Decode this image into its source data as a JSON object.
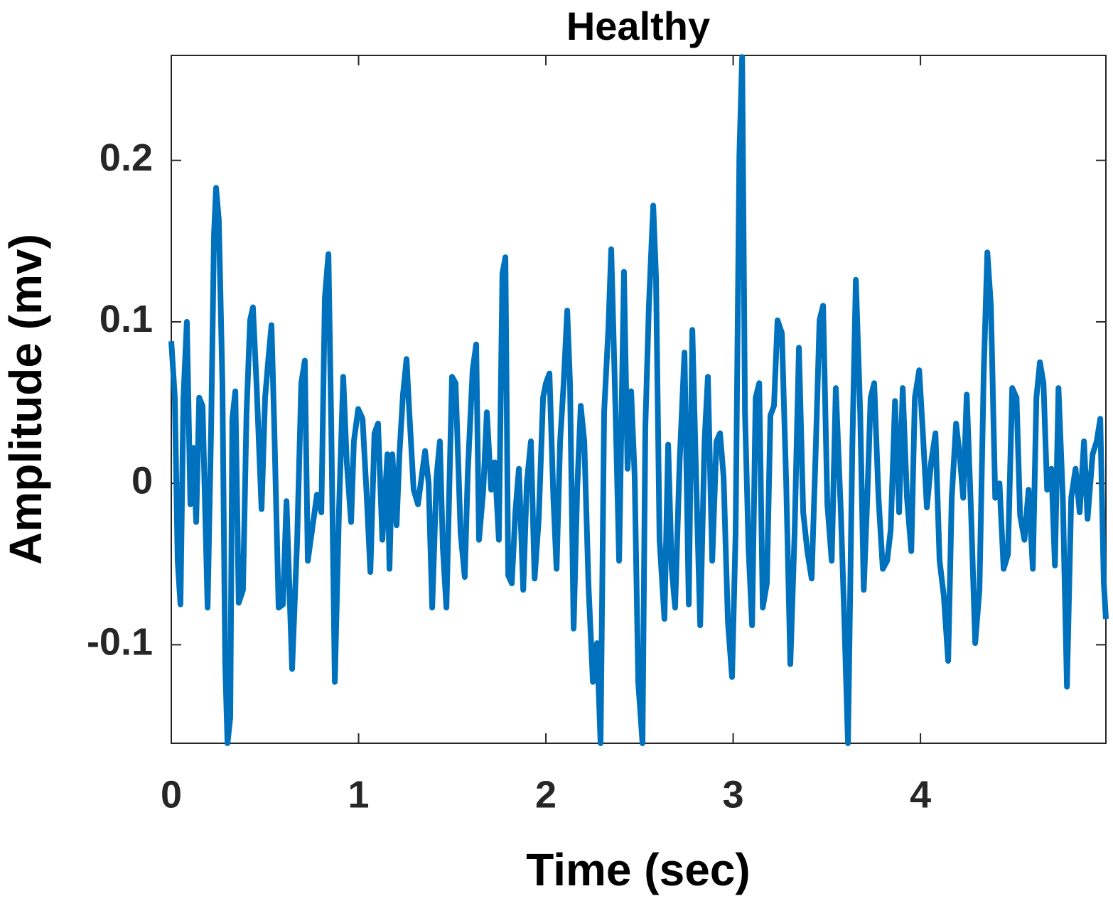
{
  "chart_data": {
    "type": "line",
    "title": "Healthy",
    "x_label": "Time (sec)",
    "y_label": "Amplitude (mv)",
    "xlim": [
      0,
      4.99
    ],
    "ylim": [
      -0.161,
      0.265
    ],
    "xticks": [
      0,
      1,
      2,
      3,
      4
    ],
    "yticks": [
      -0.1,
      0,
      0.1,
      0.2
    ],
    "grid": false,
    "x": [
      0,
      0.019,
      0.034,
      0.049,
      0.065,
      0.083,
      0.102,
      0.118,
      0.133,
      0.149,
      0.167,
      0.194,
      0.213,
      0.228,
      0.239,
      0.254,
      0.273,
      0.288,
      0.3,
      0.315,
      0.326,
      0.342,
      0.36,
      0.383,
      0.402,
      0.421,
      0.436,
      0.455,
      0.482,
      0.501,
      0.52,
      0.535,
      0.55,
      0.573,
      0.596,
      0.615,
      0.645,
      0.672,
      0.694,
      0.713,
      0.729,
      0.755,
      0.778,
      0.801,
      0.82,
      0.839,
      0.854,
      0.873,
      0.896,
      0.918,
      0.937,
      0.96,
      0.975,
      0.998,
      1.021,
      1.044,
      1.063,
      1.085,
      1.104,
      1.127,
      1.154,
      1.165,
      1.18,
      1.203,
      1.218,
      1.237,
      1.256,
      1.271,
      1.294,
      1.317,
      1.332,
      1.355,
      1.374,
      1.393,
      1.416,
      1.434,
      1.45,
      1.469,
      1.499,
      1.518,
      1.545,
      1.567,
      1.583,
      1.609,
      1.628,
      1.643,
      1.666,
      1.685,
      1.708,
      1.727,
      1.749,
      1.768,
      1.784,
      1.799,
      1.818,
      1.837,
      1.856,
      1.879,
      1.898,
      1.92,
      1.94,
      1.962,
      1.985,
      2.0,
      2.019,
      2.04,
      2.057,
      2.076,
      2.095,
      2.114,
      2.129,
      2.148,
      2.167,
      2.186,
      2.205,
      2.228,
      2.251,
      2.273,
      2.292,
      2.311,
      2.334,
      2.349,
      2.372,
      2.391,
      2.417,
      2.436,
      2.455,
      2.474,
      2.493,
      2.516,
      2.531,
      2.55,
      2.573,
      2.588,
      2.607,
      2.633,
      2.653,
      2.672,
      2.69,
      2.714,
      2.74,
      2.763,
      2.782,
      2.805,
      2.824,
      2.847,
      2.865,
      2.888,
      2.911,
      2.93,
      2.949,
      2.972,
      2.994,
      3.013,
      3.033,
      3.048,
      3.063,
      3.082,
      3.101,
      3.12,
      3.139,
      3.158,
      3.18,
      3.199,
      3.218,
      3.237,
      3.26,
      3.283,
      3.305,
      3.328,
      3.351,
      3.374,
      3.396,
      3.419,
      3.442,
      3.461,
      3.48,
      3.503,
      3.526,
      3.548,
      3.575,
      3.594,
      3.613,
      3.636,
      3.655,
      3.678,
      3.697,
      3.716,
      3.734,
      3.753,
      3.776,
      3.799,
      3.822,
      3.841,
      3.864,
      3.886,
      3.905,
      3.928,
      3.951,
      3.97,
      3.993,
      4.011,
      4.034,
      4.057,
      4.08,
      4.102,
      4.125,
      4.148,
      4.167,
      4.19,
      4.209,
      4.228,
      4.247,
      4.27,
      4.292,
      4.315,
      4.338,
      4.357,
      4.376,
      4.399,
      4.422,
      4.444,
      4.467,
      4.49,
      4.513,
      4.532,
      4.555,
      4.577,
      4.6,
      4.619,
      4.638,
      4.657,
      4.676,
      4.699,
      4.718,
      4.737,
      4.76,
      4.782,
      4.805,
      4.828,
      4.85,
      4.873,
      4.892,
      4.919,
      4.941,
      4.96,
      4.979,
      4.99
    ],
    "series": [
      {
        "color": "#0072bd",
        "values": [
          0.088,
          0.053,
          -0.048,
          -0.075,
          0.053,
          0.1,
          -0.013,
          0.022,
          -0.024,
          0.053,
          0.048,
          -0.077,
          0.035,
          0.154,
          0.183,
          0.163,
          0.062,
          -0.112,
          -0.161,
          -0.145,
          0.04,
          0.057,
          -0.074,
          -0.066,
          0.044,
          0.101,
          0.109,
          0.062,
          -0.016,
          0.053,
          0.079,
          0.098,
          0.035,
          -0.077,
          -0.075,
          -0.011,
          -0.115,
          -0.035,
          0.062,
          0.076,
          -0.048,
          -0.026,
          -0.007,
          -0.018,
          0.115,
          0.142,
          0.035,
          -0.123,
          -0.015,
          0.066,
          0.013,
          -0.024,
          0.026,
          0.046,
          0.04,
          -0.009,
          -0.055,
          0.031,
          0.037,
          -0.035,
          0.018,
          -0.053,
          0.018,
          -0.026,
          0.018,
          0.055,
          0.077,
          0.044,
          -0.004,
          -0.013,
          0,
          0.02,
          0,
          -0.077,
          0.004,
          0.026,
          -0.04,
          -0.077,
          0.066,
          0.062,
          -0.031,
          -0.058,
          0.007,
          0.07,
          0.086,
          -0.035,
          -0.004,
          0.044,
          -0.004,
          0.013,
          -0.035,
          0.13,
          0.14,
          -0.057,
          -0.062,
          -0.018,
          0.009,
          -0.066,
          0,
          0.026,
          -0.059,
          -0.022,
          0.053,
          0.062,
          0.068,
          -0.009,
          -0.053,
          0.026,
          0.062,
          0.107,
          0.062,
          -0.09,
          -0.004,
          0.048,
          0.026,
          -0.064,
          -0.123,
          -0.099,
          -0.161,
          0.044,
          0.097,
          0.145,
          0.044,
          -0.048,
          0.131,
          0.009,
          0.057,
          0.004,
          -0.123,
          -0.161,
          0.035,
          0.11,
          0.172,
          0.128,
          -0.035,
          -0.084,
          0.024,
          -0.053,
          -0.077,
          0.013,
          0.081,
          -0.075,
          0.095,
          -0.009,
          -0.088,
          0.026,
          0.066,
          -0.048,
          0.026,
          0.031,
          0.004,
          -0.086,
          -0.12,
          -0.031,
          0.203,
          0.264,
          0.044,
          -0.04,
          -0.088,
          0.053,
          0.062,
          -0.077,
          -0.062,
          0.042,
          0.048,
          0.101,
          0.093,
          0,
          -0.112,
          -0.031,
          0.084,
          -0.018,
          -0.042,
          -0.059,
          0.026,
          0.101,
          0.11,
          -0.013,
          -0.048,
          0.059,
          -0.018,
          -0.086,
          -0.161,
          0.022,
          0.126,
          0.044,
          -0.066,
          -0.009,
          0.053,
          0.062,
          -0.009,
          -0.053,
          -0.048,
          -0.029,
          0.051,
          -0.018,
          0.059,
          -0.009,
          -0.042,
          0.053,
          0.07,
          0.035,
          -0.015,
          0.013,
          0.031,
          -0.048,
          -0.07,
          -0.11,
          -0.009,
          0.037,
          0.018,
          -0.009,
          0.055,
          -0.018,
          -0.099,
          -0.066,
          0.07,
          0.143,
          0.11,
          -0.009,
          0,
          -0.053,
          -0.044,
          0.059,
          0.053,
          -0.02,
          -0.035,
          -0.004,
          -0.053,
          0.053,
          0.075,
          0.062,
          -0.004,
          0.009,
          -0.051,
          0.059,
          -0.009,
          -0.126,
          -0.009,
          0.009,
          -0.018,
          0.026,
          -0.022,
          0.018,
          0.026,
          0.04,
          -0.062,
          -0.084
        ]
      }
    ]
  }
}
